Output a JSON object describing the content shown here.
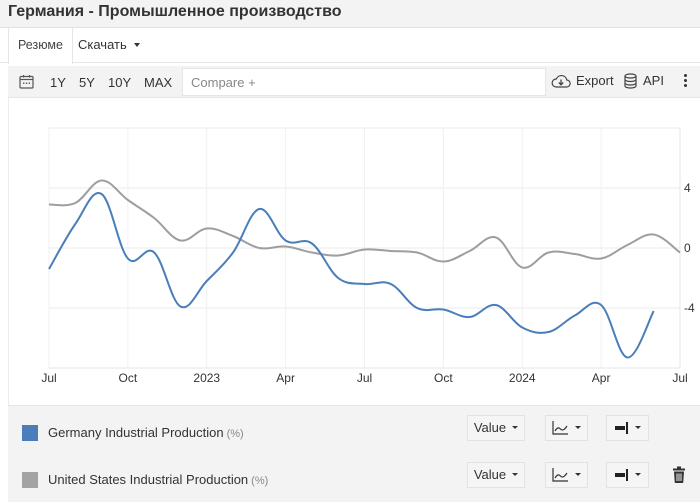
{
  "header": {
    "title": "Германия - Промышленное производство"
  },
  "tabs": [
    {
      "label": "Резюме",
      "active": true
    },
    {
      "label": "Скачать",
      "has_dropdown": true
    }
  ],
  "toolbar": {
    "calendar_icon": "calendar-icon",
    "ranges": [
      "1Y",
      "5Y",
      "10Y",
      "MAX"
    ],
    "compare_placeholder": "Compare +",
    "export_label": "Export",
    "export_icon": "cloud-download-icon",
    "api_label": "API",
    "api_icon": "database-icon",
    "more_icon": "kebab-menu-icon"
  },
  "chart_data": {
    "type": "line",
    "title": "Германия - Промышленное производство",
    "xlabel": "",
    "ylabel": "%",
    "x": [
      "2022-07",
      "2022-08",
      "2022-09",
      "2022-10",
      "2022-11",
      "2022-12",
      "2023-01",
      "2023-02",
      "2023-03",
      "2023-04",
      "2023-05",
      "2023-06",
      "2023-07",
      "2023-08",
      "2023-09",
      "2023-10",
      "2023-11",
      "2023-12",
      "2024-01",
      "2024-02",
      "2024-03",
      "2024-04",
      "2024-05",
      "2024-06",
      "2024-07"
    ],
    "x_tick_labels": [
      "Jul",
      "Oct",
      "2023",
      "Apr",
      "Jul",
      "Oct",
      "2024",
      "Apr",
      "Jul"
    ],
    "y_tick_labels": [
      "4",
      "0",
      "-4"
    ],
    "ylim": [
      -8,
      8
    ],
    "grid": true,
    "y_axis_position": "right",
    "legend_position": "bottom",
    "series": [
      {
        "name": "Germany Industrial Production",
        "unit": "%",
        "color": "#4a7ebb",
        "values": [
          -1.4,
          1.6,
          3.6,
          -0.7,
          -0.3,
          -3.9,
          -2.2,
          -0.3,
          2.6,
          0.5,
          0.3,
          -2.0,
          -2.4,
          -2.4,
          -4.0,
          -4.1,
          -4.6,
          -3.8,
          -5.3,
          -5.6,
          -4.5,
          -3.8,
          -7.3,
          -4.2,
          null
        ]
      },
      {
        "name": "United States Industrial Production",
        "unit": "%",
        "color": "#9e9e9e",
        "values": [
          2.9,
          3.0,
          4.5,
          3.2,
          2.0,
          0.5,
          1.3,
          0.8,
          0.0,
          0.1,
          -0.3,
          -0.5,
          -0.1,
          -0.2,
          -0.3,
          -0.9,
          -0.2,
          0.7,
          -1.3,
          -0.3,
          -0.4,
          -0.7,
          0.2,
          0.9,
          -0.3
        ]
      }
    ]
  },
  "legend": [
    {
      "label": "Germany Industrial Production",
      "unit": "(%)",
      "color": "#4a7ebb",
      "value_select": "Value",
      "chart_type_icon": "line-chart-icon",
      "axis_icon": "axis-right-icon",
      "deletable": false
    },
    {
      "label": "United States Industrial Production",
      "unit": "(%)",
      "color": "#a3a3a3",
      "value_select": "Value",
      "chart_type_icon": "line-chart-icon",
      "axis_icon": "axis-right-icon",
      "deletable": true,
      "delete_icon": "trash-icon"
    }
  ]
}
